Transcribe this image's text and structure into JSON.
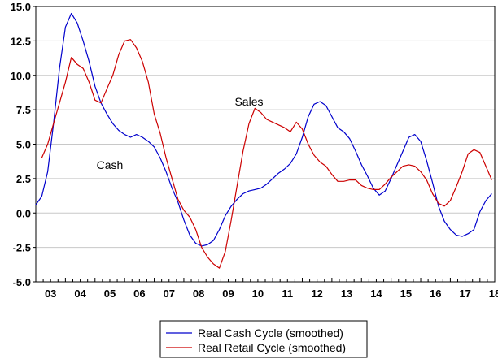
{
  "chart_data": {
    "type": "line",
    "title": "",
    "xlabel": "",
    "ylabel": "",
    "ylim": [
      -5.0,
      15.0
    ],
    "y_ticks": [
      "15.0",
      "12.5",
      "10.0",
      "7.5",
      "5.0",
      "2.5",
      "0.0",
      "-2.5",
      "-5.0"
    ],
    "x_range": [
      2003.0,
      2018.5
    ],
    "x_ticks": [
      "03",
      "04",
      "05",
      "06",
      "07",
      "08",
      "09",
      "10",
      "11",
      "12",
      "13",
      "14",
      "15",
      "16",
      "17",
      "18"
    ],
    "grid": true,
    "legend_position": "bottom",
    "annotations": [
      {
        "text": "Sales",
        "x": 2010.2,
        "y": 7.8
      },
      {
        "text": "Cash",
        "x": 2005.5,
        "y": 3.2
      }
    ],
    "series": [
      {
        "name": "Real Cash Cycle (smoothed)",
        "color": "#0000cc",
        "x": [
          2003.0,
          2003.2,
          2003.4,
          2003.6,
          2003.8,
          2004.0,
          2004.2,
          2004.4,
          2004.6,
          2004.8,
          2005.0,
          2005.2,
          2005.4,
          2005.6,
          2005.8,
          2006.0,
          2006.2,
          2006.4,
          2006.6,
          2006.8,
          2007.0,
          2007.2,
          2007.4,
          2007.6,
          2007.8,
          2008.0,
          2008.2,
          2008.4,
          2008.6,
          2008.8,
          2009.0,
          2009.2,
          2009.4,
          2009.6,
          2009.8,
          2010.0,
          2010.2,
          2010.4,
          2010.6,
          2010.8,
          2011.0,
          2011.2,
          2011.4,
          2011.6,
          2011.8,
          2012.0,
          2012.2,
          2012.4,
          2012.6,
          2012.8,
          2013.0,
          2013.2,
          2013.4,
          2013.6,
          2013.8,
          2014.0,
          2014.2,
          2014.4,
          2014.6,
          2014.8,
          2015.0,
          2015.2,
          2015.4,
          2015.6,
          2015.8,
          2016.0,
          2016.2,
          2016.4,
          2016.6,
          2016.8,
          2017.0,
          2017.2,
          2017.4,
          2017.6,
          2017.8,
          2018.0,
          2018.2,
          2018.4
        ],
        "values": [
          0.6,
          1.2,
          3.0,
          6.5,
          10.5,
          13.5,
          14.5,
          13.8,
          12.5,
          11.0,
          9.2,
          8.0,
          7.2,
          6.5,
          6.0,
          5.7,
          5.5,
          5.7,
          5.5,
          5.2,
          4.8,
          4.0,
          3.0,
          1.8,
          0.8,
          -0.5,
          -1.6,
          -2.2,
          -2.4,
          -2.3,
          -2.0,
          -1.2,
          -0.2,
          0.5,
          1.0,
          1.4,
          1.6,
          1.7,
          1.8,
          2.1,
          2.5,
          2.9,
          3.2,
          3.6,
          4.3,
          5.5,
          7.0,
          7.9,
          8.1,
          7.8,
          7.0,
          6.2,
          5.9,
          5.4,
          4.5,
          3.5,
          2.7,
          1.8,
          1.3,
          1.6,
          2.5,
          3.5,
          4.5,
          5.5,
          5.7,
          5.2,
          3.8,
          2.2,
          0.5,
          -0.6,
          -1.2,
          -1.6,
          -1.7,
          -1.5,
          -1.2,
          0.1,
          0.9,
          1.4
        ]
      },
      {
        "name": "Real Retail Cycle (smoothed)",
        "color": "#cc0000",
        "x": [
          2003.2,
          2003.4,
          2003.6,
          2003.8,
          2004.0,
          2004.2,
          2004.4,
          2004.6,
          2004.8,
          2005.0,
          2005.2,
          2005.4,
          2005.6,
          2005.8,
          2006.0,
          2006.2,
          2006.4,
          2006.6,
          2006.8,
          2007.0,
          2007.2,
          2007.4,
          2007.6,
          2007.8,
          2008.0,
          2008.2,
          2008.4,
          2008.6,
          2008.8,
          2009.0,
          2009.2,
          2009.4,
          2009.6,
          2009.8,
          2010.0,
          2010.2,
          2010.4,
          2010.6,
          2010.8,
          2011.0,
          2011.2,
          2011.4,
          2011.6,
          2011.8,
          2012.0,
          2012.2,
          2012.4,
          2012.6,
          2012.8,
          2013.0,
          2013.2,
          2013.4,
          2013.6,
          2013.8,
          2014.0,
          2014.2,
          2014.4,
          2014.6,
          2014.8,
          2015.0,
          2015.2,
          2015.4,
          2015.6,
          2015.8,
          2016.0,
          2016.2,
          2016.4,
          2016.6,
          2016.8,
          2017.0,
          2017.2,
          2017.4,
          2017.6,
          2017.8,
          2018.0,
          2018.2,
          2018.4
        ],
        "values": [
          4.0,
          5.0,
          6.5,
          8.0,
          9.5,
          11.3,
          10.8,
          10.5,
          9.5,
          8.2,
          8.0,
          9.0,
          10.0,
          11.5,
          12.5,
          12.6,
          12.0,
          11.0,
          9.5,
          7.2,
          5.8,
          4.0,
          2.5,
          1.0,
          0.2,
          -0.3,
          -1.2,
          -2.5,
          -3.2,
          -3.7,
          -4.0,
          -2.8,
          -0.5,
          2.0,
          4.5,
          6.5,
          7.6,
          7.3,
          6.8,
          6.6,
          6.4,
          6.2,
          5.9,
          6.6,
          6.1,
          5.0,
          4.2,
          3.7,
          3.4,
          2.8,
          2.3,
          2.3,
          2.4,
          2.4,
          2.0,
          1.8,
          1.7,
          1.7,
          2.1,
          2.6,
          3.0,
          3.4,
          3.5,
          3.4,
          3.0,
          2.4,
          1.4,
          0.7,
          0.5,
          0.9,
          1.9,
          3.0,
          4.3,
          4.6,
          4.4,
          3.4,
          2.4
        ]
      }
    ]
  }
}
